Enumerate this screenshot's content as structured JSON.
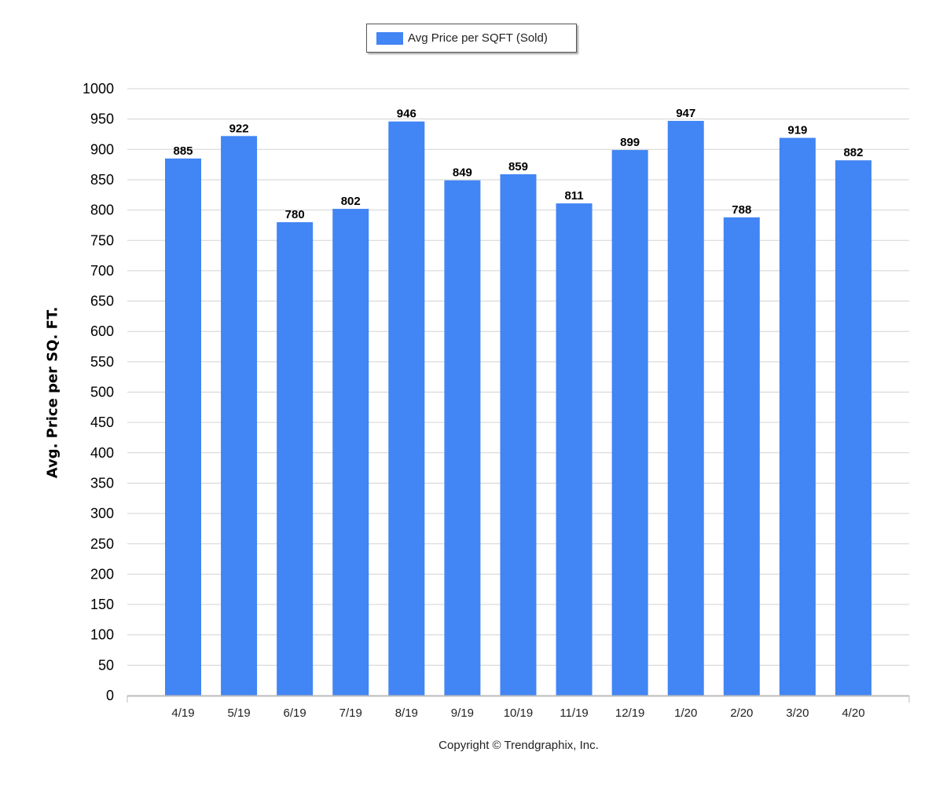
{
  "chart_data": {
    "type": "bar",
    "title": "",
    "xlabel": "",
    "ylabel": "Avg. Price per SQ. FT.",
    "categories": [
      "4/19",
      "5/19",
      "6/19",
      "7/19",
      "8/19",
      "9/19",
      "10/19",
      "11/19",
      "12/19",
      "1/20",
      "2/20",
      "3/20",
      "4/20"
    ],
    "series": [
      {
        "name": "Avg Price per SQFT (Sold)",
        "color": "#4285f4",
        "values": [
          885,
          922,
          780,
          802,
          946,
          849,
          859,
          811,
          899,
          947,
          788,
          919,
          882
        ]
      }
    ],
    "ylim": [
      0,
      1000
    ],
    "ytick_step": 50,
    "yticks": [
      "0",
      "50",
      "100",
      "150",
      "200",
      "250",
      "300",
      "350",
      "400",
      "450",
      "500",
      "550",
      "600",
      "650",
      "700",
      "750",
      "800",
      "850",
      "900",
      "950",
      "1000"
    ],
    "data_labels": [
      "885",
      "922",
      "780",
      "802",
      "946",
      "849",
      "859",
      "811",
      "899",
      "947",
      "788",
      "919",
      "882"
    ],
    "grid": true,
    "legend_position": "top-center"
  },
  "legend": {
    "label": "Avg Price per SQFT (Sold)",
    "color": "#4285f4"
  },
  "footer": {
    "copyright": "Copyright © Trendgraphix, Inc."
  }
}
